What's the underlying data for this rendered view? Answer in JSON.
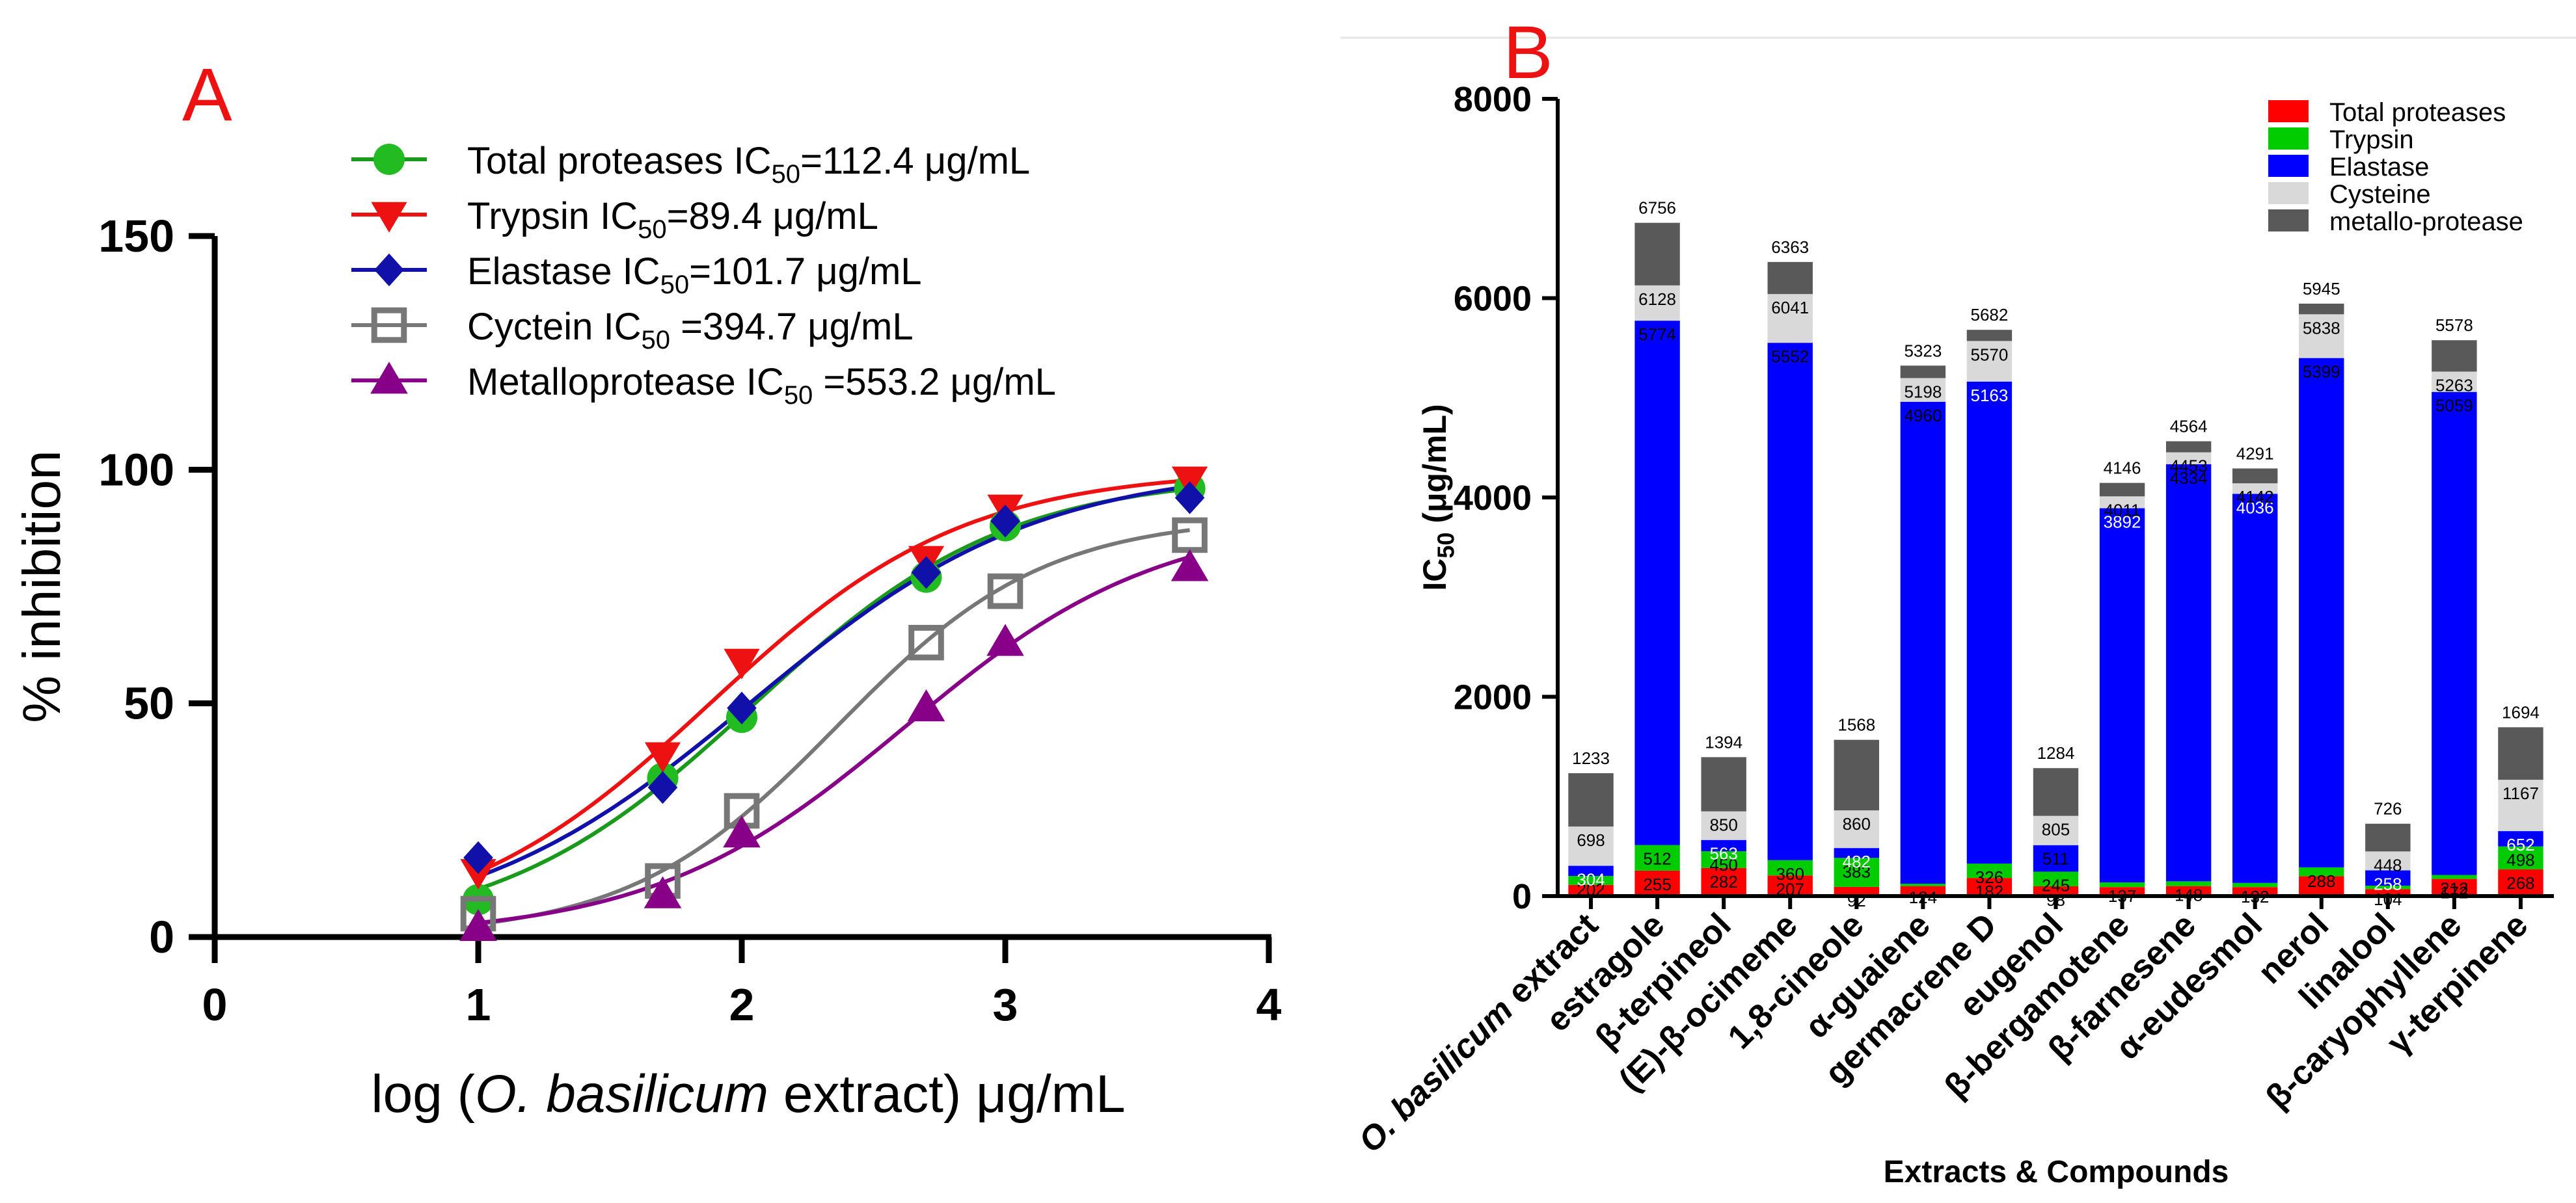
{
  "panel_labels": {
    "a": "A",
    "b": "B"
  },
  "chart_data": [
    {
      "type": "scatter",
      "panel": "A",
      "xlabel_parts": [
        "log (",
        "O. basilicum",
        " extract) μg/mL"
      ],
      "ylabel": "% inhibition",
      "xlim": [
        0,
        4
      ],
      "ylim": [
        0,
        150
      ],
      "x_ticks": [
        "0",
        "1",
        "2",
        "3",
        "4"
      ],
      "y_ticks": [
        "0",
        "50",
        "100",
        "150"
      ],
      "x_tick_values": [
        0,
        1,
        2,
        3,
        4
      ],
      "y_tick_values": [
        0,
        50,
        100,
        150
      ],
      "fit_curves": true,
      "legend_position": "top-right",
      "series": [
        {
          "name": "Total proteases IC50=112.4 μg/mL",
          "legend_prefix": "Total proteases IC",
          "legend_sub": "50",
          "legend_suffix": "=112.4 μg/mL",
          "marker": "circle",
          "color": "#22bb22",
          "line_color": "#1a9a1a",
          "x": [
            1.0,
            1.7,
            2.0,
            2.7,
            3.0,
            3.7
          ],
          "y": [
            8,
            34,
            47,
            77,
            88,
            96
          ]
        },
        {
          "name": "Trypsin IC50=89.4 μg/mL",
          "legend_prefix": "Trypsin IC",
          "legend_sub": "50",
          "legend_suffix": "=89.4 μg/mL",
          "marker": "triangle-down",
          "color": "#ee1111",
          "line_color": "#ee1111",
          "x": [
            1.0,
            1.7,
            2.0,
            2.7,
            3.0,
            3.7
          ],
          "y": [
            14,
            39,
            59,
            81,
            92,
            98
          ]
        },
        {
          "name": "Elastase IC50=101.7 μg/mL",
          "legend_prefix": "Elastase IC",
          "legend_sub": "50",
          "legend_suffix": "=101.7 μg/mL",
          "marker": "diamond",
          "color": "#1111aa",
          "line_color": "#1111aa",
          "x": [
            1.0,
            1.7,
            2.0,
            2.7,
            3.0,
            3.7
          ],
          "y": [
            17,
            32,
            49,
            78,
            89,
            94
          ]
        },
        {
          "name": "Cyctein IC50 =394.7 μg/mL",
          "legend_prefix": "Cyctein IC",
          "legend_sub": "50",
          "legend_suffix": " =394.7 μg/mL",
          "marker": "square-open",
          "color": "#777777",
          "line_color": "#777777",
          "x": [
            1.0,
            1.7,
            2.0,
            2.7,
            3.0,
            3.7
          ],
          "y": [
            5,
            12,
            27,
            63,
            74,
            86
          ]
        },
        {
          "name": "Metalloprotease IC50 =553.2 μg/mL",
          "legend_prefix": "Metalloprotease IC",
          "legend_sub": "50",
          "legend_suffix": " =553.2 μg/mL",
          "marker": "triangle-up",
          "color": "#880088",
          "line_color": "#880088",
          "x": [
            1.0,
            1.7,
            2.0,
            2.7,
            3.0,
            3.7
          ],
          "y": [
            2,
            9,
            22,
            49,
            63,
            79
          ]
        }
      ]
    },
    {
      "type": "bar",
      "stacked": true,
      "panel": "B",
      "xlabel": "Extracts & Compounds",
      "ylabel_prefix": "IC",
      "ylabel_sub": "50",
      "ylabel_suffix": " (μg/mL)",
      "ylim": [
        0,
        8000
      ],
      "y_ticks": [
        "0",
        "2000",
        "4000",
        "6000",
        "8000"
      ],
      "y_tick_values": [
        0,
        2000,
        4000,
        6000,
        8000
      ],
      "legend_position": "top-right",
      "categories": [
        [
          "O. basilicum",
          " extract"
        ],
        [
          "estragole"
        ],
        [
          "β-terpineol"
        ],
        [
          "(E)-β-ocimeme"
        ],
        [
          "1,8-cineole"
        ],
        [
          "α-guaiene"
        ],
        [
          "germacrene D"
        ],
        [
          "eugenol"
        ],
        [
          "β-bergamotene"
        ],
        [
          "β-farnesene"
        ],
        [
          "α-eudesmol"
        ],
        [
          "nerol"
        ],
        [
          "linalool"
        ],
        [
          "β-caryophyllene"
        ],
        [
          "γ-terpinene"
        ]
      ],
      "series": [
        {
          "name": "Total proteases",
          "color": "#ff0000"
        },
        {
          "name": "Trypsin",
          "color": "#00cc00"
        },
        {
          "name": "Elastase",
          "color": "#0000ff"
        },
        {
          "name": "Cysteine",
          "color": "#d9d9d9"
        },
        {
          "name": "metallo-protease",
          "color": "#595959"
        }
      ],
      "bars": [
        {
          "cumulative": [
            112,
            202,
            304,
            698,
            1233
          ],
          "labels": [
            "",
            "202",
            "304",
            "698",
            "1233"
          ]
        },
        {
          "cumulative": [
            255,
            512,
            5774,
            6128,
            6756
          ],
          "labels": [
            "255",
            "512",
            "5774",
            "6128",
            "6756"
          ]
        },
        {
          "cumulative": [
            282,
            450,
            563,
            850,
            1394
          ],
          "labels": [
            "282",
            "450",
            "563",
            "850",
            "1394"
          ]
        },
        {
          "cumulative": [
            207,
            360,
            5552,
            6041,
            6363
          ],
          "labels": [
            "207",
            "360",
            "5552",
            "6041",
            "6363"
          ]
        },
        {
          "cumulative": [
            92,
            383,
            482,
            860,
            1568
          ],
          "labels": [
            "92",
            "383",
            "482",
            "860",
            "1568"
          ]
        },
        {
          "cumulative": [
            100,
            124,
            4960,
            5198,
            5323
          ],
          "labels": [
            "",
            "124",
            "4960",
            "5198",
            "5323"
          ]
        },
        {
          "cumulative": [
            182,
            326,
            5163,
            5570,
            5682
          ],
          "labels": [
            "182",
            "326",
            "5163",
            "5570",
            "5682"
          ]
        },
        {
          "cumulative": [
            98,
            245,
            511,
            805,
            1284
          ],
          "labels": [
            "98",
            "245",
            "511",
            "805",
            "1284"
          ]
        },
        {
          "cumulative": [
            90,
            137,
            3892,
            4011,
            4146
          ],
          "labels": [
            "",
            "137",
            "3892",
            "4011",
            "4146"
          ]
        },
        {
          "cumulative": [
            100,
            148,
            4334,
            4453,
            4564
          ],
          "labels": [
            "",
            "148",
            "4334",
            "4453",
            "4564"
          ]
        },
        {
          "cumulative": [
            90,
            132,
            4036,
            4142,
            4291
          ],
          "labels": [
            "",
            "132",
            "4036",
            "4142",
            "4291"
          ]
        },
        {
          "cumulative": [
            200,
            288,
            5399,
            5838,
            5945
          ],
          "labels": [
            "",
            "288",
            "5399",
            "5838",
            "5945"
          ]
        },
        {
          "cumulative": [
            70,
            104,
            258,
            448,
            726
          ],
          "labels": [
            "",
            "104",
            "258",
            "448",
            "726"
          ]
        },
        {
          "cumulative": [
            172,
            212,
            5059,
            5263,
            5578
          ],
          "labels": [
            "172",
            "212",
            "5059",
            "5263",
            "5578"
          ]
        },
        {
          "cumulative": [
            268,
            498,
            652,
            1167,
            1694
          ],
          "labels": [
            "268",
            "498",
            "652",
            "1167",
            "1694"
          ]
        }
      ]
    }
  ]
}
